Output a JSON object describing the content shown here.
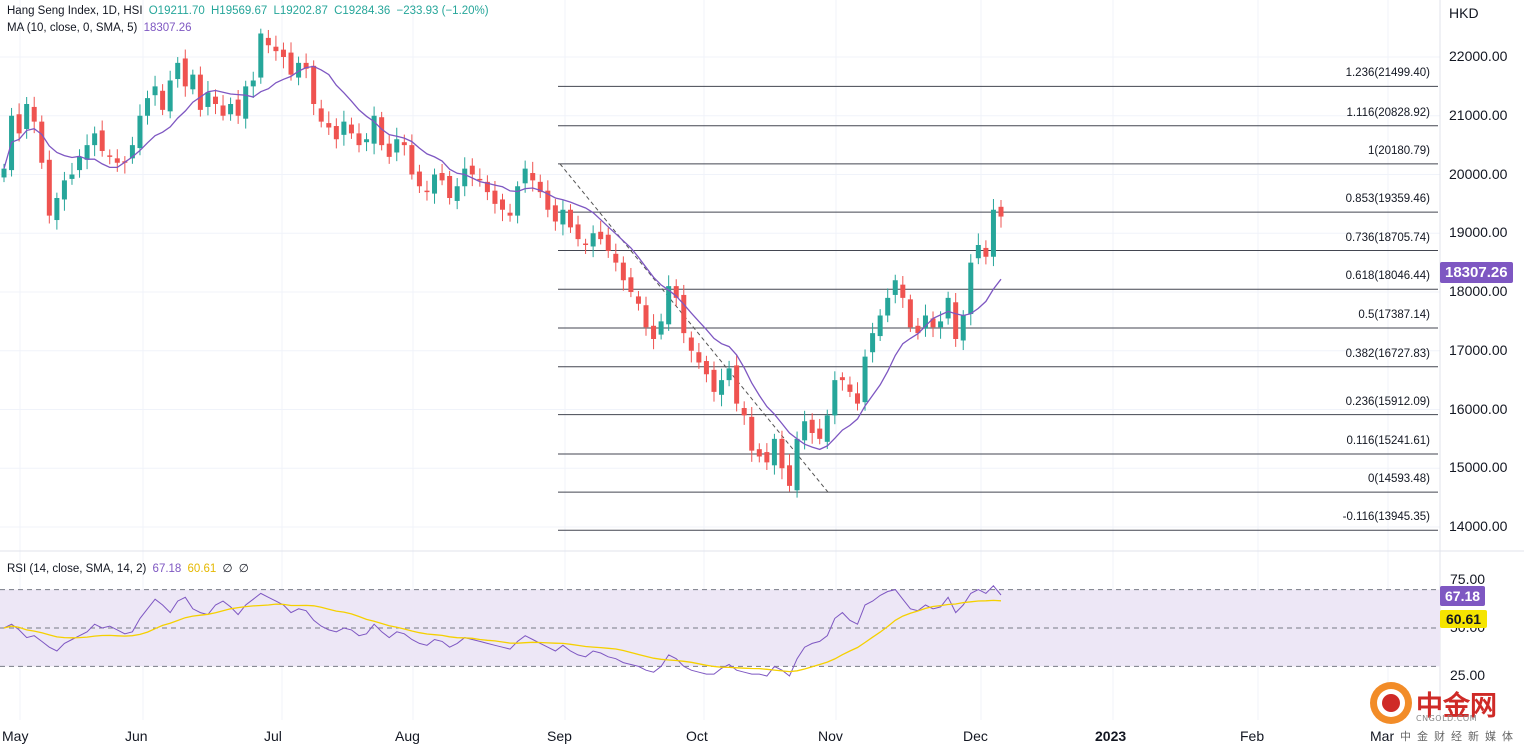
{
  "legend": {
    "main": "Hang Seng Index, 1D, HSI",
    "open": "O19211.70",
    "high": "H19569.67",
    "low": "L19202.87",
    "close": "C19284.36",
    "change": "−233.93 (−1.20%)",
    "ma_label": "MA (10, close, 0, SMA, 5)",
    "ma_value": "18307.26",
    "rsi_label": "RSI (14, close, SMA, 14, 2)",
    "rsi_value": "67.18",
    "rsi_ma_value": "60.61",
    "rsi_extra1": "∅",
    "rsi_extra2": "∅"
  },
  "currency": "HKD",
  "badges": {
    "ma": "18307.26",
    "rsi": "67.18",
    "rsi_ma": "60.61"
  },
  "colors": {
    "up": "#26a69a",
    "down": "#ef5350",
    "ma": "#7e57c2",
    "rsi": "#7e57c2",
    "rsi_ma": "#f5d000",
    "rsi_band": "#ede7f6"
  },
  "logo": {
    "name": "中金网",
    "site": "CNGOLD.COM",
    "tagline": "中金财经新媒体"
  },
  "chart_data": [
    {
      "type": "candlestick",
      "title": "",
      "ylim": [
        13600,
        22700
      ],
      "y_ticks": [
        "22000.00",
        "21000.00",
        "20000.00",
        "19000.00",
        "18000.00",
        "17000.00",
        "16000.00",
        "15000.00",
        "14000.00"
      ],
      "x_ticks": [
        "May",
        "Jun",
        "Jul",
        "Aug",
        "Sep",
        "Oct",
        "Nov",
        "Dec",
        "2023",
        "Feb",
        "Mar"
      ],
      "fib_levels": [
        {
          "ratio": "1.236",
          "value": 21499.4
        },
        {
          "ratio": "1.116",
          "value": 20828.92
        },
        {
          "ratio": "1",
          "value": 20180.79
        },
        {
          "ratio": "0.853",
          "value": 19359.46
        },
        {
          "ratio": "0.736",
          "value": 18705.74
        },
        {
          "ratio": "0.618",
          "value": 18046.44
        },
        {
          "ratio": "0.5",
          "value": 17387.14
        },
        {
          "ratio": "0.382",
          "value": 16727.83
        },
        {
          "ratio": "0.236",
          "value": 15912.09
        },
        {
          "ratio": "0.116",
          "value": 15241.61
        },
        {
          "ratio": "0",
          "value": 14593.48
        },
        {
          "ratio": "-0.116",
          "value": 13945.35
        }
      ],
      "closes": [
        20100,
        21000,
        20700,
        21200,
        20900,
        20200,
        19300,
        19600,
        19900,
        20000,
        20300,
        20500,
        20700,
        20400,
        20300,
        20200,
        20200,
        20500,
        21000,
        21300,
        21500,
        21100,
        21600,
        21900,
        21500,
        21700,
        21100,
        21400,
        21200,
        21000,
        21200,
        21000,
        21500,
        21600,
        22400,
        22200,
        22100,
        22000,
        21700,
        21900,
        21800,
        21200,
        20900,
        20800,
        20600,
        20900,
        20700,
        20500,
        20600,
        21000,
        20500,
        20300,
        20600,
        20500,
        20000,
        19800,
        19700,
        20000,
        19900,
        19600,
        19800,
        20100,
        20000,
        19900,
        19700,
        19500,
        19400,
        19300,
        19800,
        20100,
        19900,
        19700,
        19400,
        19200,
        19400,
        19100,
        18900,
        18800,
        19000,
        18900,
        18700,
        18500,
        18200,
        18000,
        17800,
        17400,
        17200,
        17500,
        18100,
        17900,
        17300,
        17000,
        16800,
        16600,
        16300,
        16500,
        16700,
        16100,
        15900,
        15300,
        15200,
        15100,
        15500,
        15000,
        14700,
        15500,
        15800,
        15600,
        15500,
        15900,
        16500,
        16500,
        16300,
        16100,
        16900,
        17300,
        17600,
        17900,
        18200,
        17900,
        17400,
        17300,
        17600,
        17400,
        17500,
        17900,
        17200,
        17600,
        18500,
        18800,
        18600,
        19400,
        19284
      ]
    },
    {
      "type": "line",
      "title": "",
      "ylim": [
        0,
        100
      ],
      "y_ticks": [
        "75.00",
        "50.00",
        "25.00"
      ],
      "rsi": [
        50,
        52,
        49,
        45,
        46,
        43,
        40,
        38,
        42,
        44,
        46,
        48,
        52,
        50,
        51,
        49,
        47,
        48,
        55,
        60,
        65,
        62,
        58,
        64,
        66,
        60,
        58,
        57,
        62,
        64,
        61,
        57,
        62,
        65,
        68,
        66,
        64,
        62,
        58,
        60,
        59,
        54,
        51,
        49,
        48,
        50,
        49,
        46,
        47,
        52,
        48,
        45,
        48,
        47,
        44,
        42,
        41,
        44,
        43,
        40,
        42,
        45,
        44,
        43,
        42,
        41,
        40,
        39,
        43,
        46,
        44,
        42,
        40,
        38,
        41,
        38,
        36,
        35,
        38,
        37,
        35,
        34,
        32,
        31,
        30,
        28,
        27,
        30,
        36,
        34,
        30,
        28,
        27,
        26,
        26,
        29,
        31,
        28,
        27,
        26,
        26,
        25,
        30,
        28,
        25,
        34,
        40,
        42,
        43,
        46,
        55,
        58,
        54,
        52,
        62,
        64,
        67,
        69,
        70,
        65,
        60,
        59,
        62,
        60,
        61,
        66,
        58,
        62,
        68,
        70,
        68,
        72,
        67.18
      ],
      "rsi_ma_start": 42
    }
  ]
}
